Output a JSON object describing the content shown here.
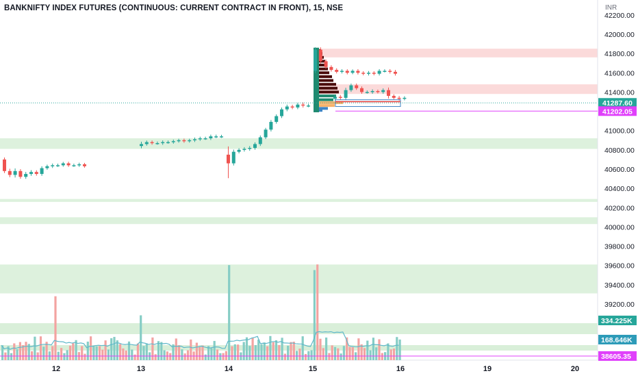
{
  "title": "BANKNIFTY INDEX FUTURES (CONTINUOUS: CURRENT CONTRACT IN FRONT), 15, NSE",
  "currency": "INR",
  "colors": {
    "up": "#26a69a",
    "down": "#ef5350",
    "zone_green": "#d9efd9",
    "zone_red": "#fbd6d6",
    "magenta": "#e040fb",
    "last_price_badge": "#26a69a",
    "volume_ma": "#5fb8c9",
    "volume_up": "#86cdc5",
    "volume_down": "#f3a3a1"
  },
  "chart_data": {
    "type": "candlestick",
    "y_axis": {
      "ticks": [
        "42200.00",
        "42000.00",
        "41800.00",
        "41600.00",
        "41400.00",
        "41200.00",
        "41000.00",
        "40800.00",
        "40600.00",
        "40400.00",
        "40200.00",
        "40000.00",
        "39800.00",
        "39600.00",
        "39400.00",
        "39200.00"
      ],
      "range": [
        38650,
        42300
      ]
    },
    "x_axis": {
      "labels": [
        "12",
        "13",
        "14",
        "15",
        "16",
        "19",
        "20"
      ]
    },
    "price_badges": [
      {
        "label": "41287.60",
        "value": 41287.6,
        "color": "#26a69a"
      },
      {
        "label": "41202.05",
        "value": 41202.05,
        "color": "#e040fb"
      }
    ],
    "volume_badges": [
      {
        "label": "334.225K",
        "color": "#26a69a"
      },
      {
        "label": "168.646K",
        "color": "#2d9bb8"
      },
      {
        "label": "38605.35",
        "color": "#e040fb"
      }
    ],
    "zones": [
      {
        "low": 41760,
        "high": 41850,
        "color": "red"
      },
      {
        "low": 41380,
        "high": 41480,
        "color": "red"
      },
      {
        "low": 40810,
        "high": 40920,
        "color": "green"
      },
      {
        "low": 40260,
        "high": 40290,
        "color": "green"
      },
      {
        "low": 40030,
        "high": 40100,
        "color": "green"
      },
      {
        "low": 39310,
        "high": 39610,
        "color": "green"
      }
    ],
    "sessions": [
      {
        "name": "12",
        "o": 40700,
        "pattern": [
          [
            -40,
            -120
          ],
          [
            -60,
            -40
          ],
          [
            -80,
            40
          ],
          [
            -30,
            -60
          ],
          [
            40,
            30
          ],
          [
            30,
            20
          ],
          [
            20,
            -20
          ],
          [
            30,
            60
          ],
          [
            10,
            20
          ],
          [
            20,
            10
          ],
          [
            -10,
            0
          ],
          [
            0,
            20
          ],
          [
            10,
            -20
          ],
          [
            -10,
            0
          ],
          [
            -10,
            10
          ],
          [
            0,
            -20
          ]
        ]
      },
      {
        "name": "13",
        "o": 40840,
        "pattern": [
          [
            60,
            20
          ],
          [
            10,
            20
          ],
          [
            -10,
            -10
          ],
          [
            -10,
            0
          ],
          [
            -20,
            10
          ],
          [
            -10,
            0
          ],
          [
            10,
            10
          ],
          [
            0,
            10
          ],
          [
            10,
            -10
          ],
          [
            0,
            10
          ],
          [
            20,
            10
          ],
          [
            10,
            10
          ],
          [
            10,
            0
          ],
          [
            20,
            20
          ],
          [
            -20,
            0
          ],
          [
            -10,
            0
          ]
        ]
      },
      {
        "name": "14",
        "o": 40750,
        "pattern": [
          [
            -470,
            -90
          ],
          [
            50,
            120
          ],
          [
            10,
            20
          ],
          [
            20,
            10
          ],
          [
            30,
            10
          ],
          [
            20,
            40
          ],
          [
            30,
            70
          ],
          [
            20,
            80
          ],
          [
            30,
            80
          ],
          [
            20,
            60
          ],
          [
            30,
            70
          ],
          [
            30,
            30
          ],
          [
            20,
            -10
          ],
          [
            20,
            30
          ],
          [
            40,
            -10
          ],
          [
            -20,
            0
          ]
        ]
      },
      {
        "name": "15",
        "o": 41620,
        "pattern": [
          [
            60,
            220
          ],
          [
            -60,
            -120
          ],
          [
            -20,
            -60
          ],
          [
            -20,
            -30
          ],
          [
            -10,
            -20
          ],
          [
            -10,
            10
          ],
          [
            10,
            -20
          ],
          [
            0,
            20
          ],
          [
            20,
            -20
          ],
          [
            10,
            -10
          ],
          [
            20,
            10
          ],
          [
            10,
            -10
          ],
          [
            20,
            30
          ],
          [
            -10,
            0
          ],
          [
            -20,
            -10
          ],
          [
            -30,
            -20
          ]
        ]
      },
      {
        "name": "16",
        "o": 41330,
        "pattern": [
          [
            -30,
            20
          ],
          [
            30,
            -10
          ],
          [
            60,
            80
          ],
          [
            20,
            50
          ],
          [
            -20,
            -30
          ],
          [
            20,
            -40
          ],
          [
            10,
            0
          ],
          [
            20,
            10
          ],
          [
            0,
            -10
          ],
          [
            20,
            20
          ],
          [
            80,
            -60
          ],
          [
            -10,
            -20
          ],
          [
            -30,
            -10
          ],
          [
            -10,
            10
          ]
        ]
      }
    ],
    "volume": {
      "ma_label": "168.646K",
      "max_label": "334.225K"
    }
  }
}
